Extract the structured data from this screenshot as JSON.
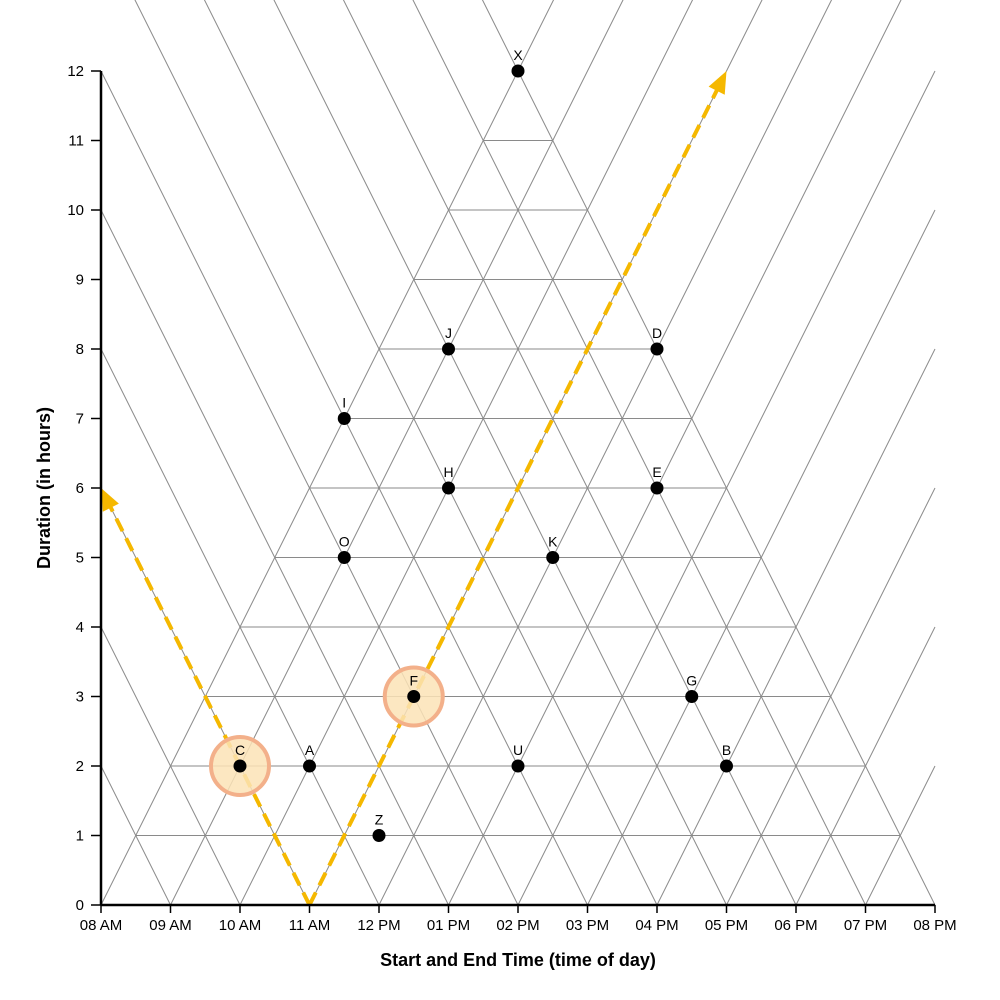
{
  "chart_data": {
    "type": "scatter",
    "title": "",
    "xlabel": "Start and End Time (time of day)",
    "ylabel": "Duration (in hours)",
    "x_ticks": [
      "08 AM",
      "09 AM",
      "10 AM",
      "11 AM",
      "12 PM",
      "01 PM",
      "02 PM",
      "03 PM",
      "04 PM",
      "05 PM",
      "06 PM",
      "07 PM",
      "08 PM"
    ],
    "y_ticks": [
      "0",
      "1",
      "2",
      "3",
      "4",
      "5",
      "6",
      "7",
      "8",
      "9",
      "10",
      "11",
      "12"
    ],
    "xlim": [
      8,
      20
    ],
    "ylim": [
      0,
      12
    ],
    "grid": "triangular",
    "points": [
      {
        "label": "X",
        "x": 14,
        "y": 12
      },
      {
        "label": "J",
        "x": 13,
        "y": 8
      },
      {
        "label": "D",
        "x": 16,
        "y": 8
      },
      {
        "label": "I",
        "x": 11.5,
        "y": 7
      },
      {
        "label": "H",
        "x": 13,
        "y": 6
      },
      {
        "label": "E",
        "x": 16,
        "y": 6
      },
      {
        "label": "O",
        "x": 11.5,
        "y": 5
      },
      {
        "label": "K",
        "x": 14.5,
        "y": 5
      },
      {
        "label": "F",
        "x": 12.5,
        "y": 3,
        "highlighted": true
      },
      {
        "label": "G",
        "x": 16.5,
        "y": 3
      },
      {
        "label": "C",
        "x": 10,
        "y": 2,
        "highlighted": true
      },
      {
        "label": "A",
        "x": 11,
        "y": 2
      },
      {
        "label": "U",
        "x": 14,
        "y": 2
      },
      {
        "label": "B",
        "x": 17,
        "y": 2
      },
      {
        "label": "Z",
        "x": 12,
        "y": 1
      }
    ],
    "reference_lines": [
      {
        "from": [
          11,
          0
        ],
        "to": [
          8,
          6
        ]
      },
      {
        "from": [
          11,
          0
        ],
        "to": [
          17,
          12
        ]
      }
    ],
    "colors": {
      "grid": "#8a8a8a",
      "point": "#000000",
      "reference_line": "#f5b800",
      "highlight_fill": "#fbe3b6",
      "highlight_stroke": "#f3b08a"
    }
  }
}
